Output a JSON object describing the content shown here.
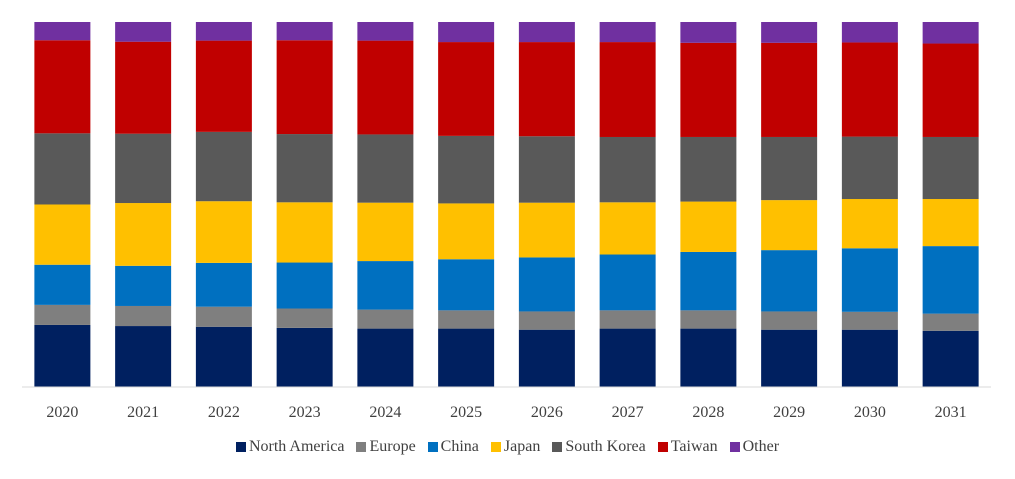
{
  "chart_data": {
    "type": "bar",
    "stacked": true,
    "percent_stacked": true,
    "categories": [
      "2020",
      "2021",
      "2022",
      "2023",
      "2024",
      "2025",
      "2026",
      "2027",
      "2028",
      "2029",
      "2030",
      "2031"
    ],
    "ylim": [
      0,
      100
    ],
    "grid": false,
    "legend_position": "bottom",
    "series": [
      {
        "name": "North America",
        "color": "#002060",
        "values": [
          17.0,
          16.7,
          16.5,
          16.2,
          16.0,
          16.0,
          15.7,
          16.0,
          16.0,
          15.7,
          15.7,
          15.4
        ]
      },
      {
        "name": "Europe",
        "color": "#7F7F7F",
        "values": [
          5.5,
          5.5,
          5.5,
          5.3,
          5.2,
          5.0,
          5.0,
          5.0,
          5.0,
          5.0,
          4.9,
          4.7
        ]
      },
      {
        "name": "China",
        "color": "#0070C0",
        "values": [
          11.0,
          11.0,
          12.0,
          12.6,
          13.3,
          14.0,
          14.8,
          15.3,
          16.0,
          16.8,
          17.4,
          18.5
        ]
      },
      {
        "name": "Japan",
        "color": "#FFC000",
        "values": [
          16.5,
          17.2,
          16.9,
          16.5,
          16.0,
          15.3,
          15.0,
          14.3,
          13.8,
          13.7,
          13.5,
          12.9
        ]
      },
      {
        "name": "South Korea",
        "color": "#595959",
        "values": [
          19.5,
          19.0,
          19.0,
          18.7,
          18.7,
          18.5,
          18.2,
          17.9,
          17.7,
          17.3,
          17.1,
          17.0
        ]
      },
      {
        "name": "Taiwan",
        "color": "#C00000",
        "values": [
          25.5,
          25.2,
          25.0,
          25.7,
          25.7,
          25.7,
          25.8,
          26.0,
          25.8,
          25.8,
          25.8,
          25.6
        ]
      },
      {
        "name": "Other",
        "color": "#7030A0",
        "values": [
          5.0,
          5.4,
          5.1,
          5.0,
          5.1,
          5.5,
          5.5,
          5.5,
          5.7,
          5.7,
          5.6,
          5.9
        ]
      }
    ]
  }
}
